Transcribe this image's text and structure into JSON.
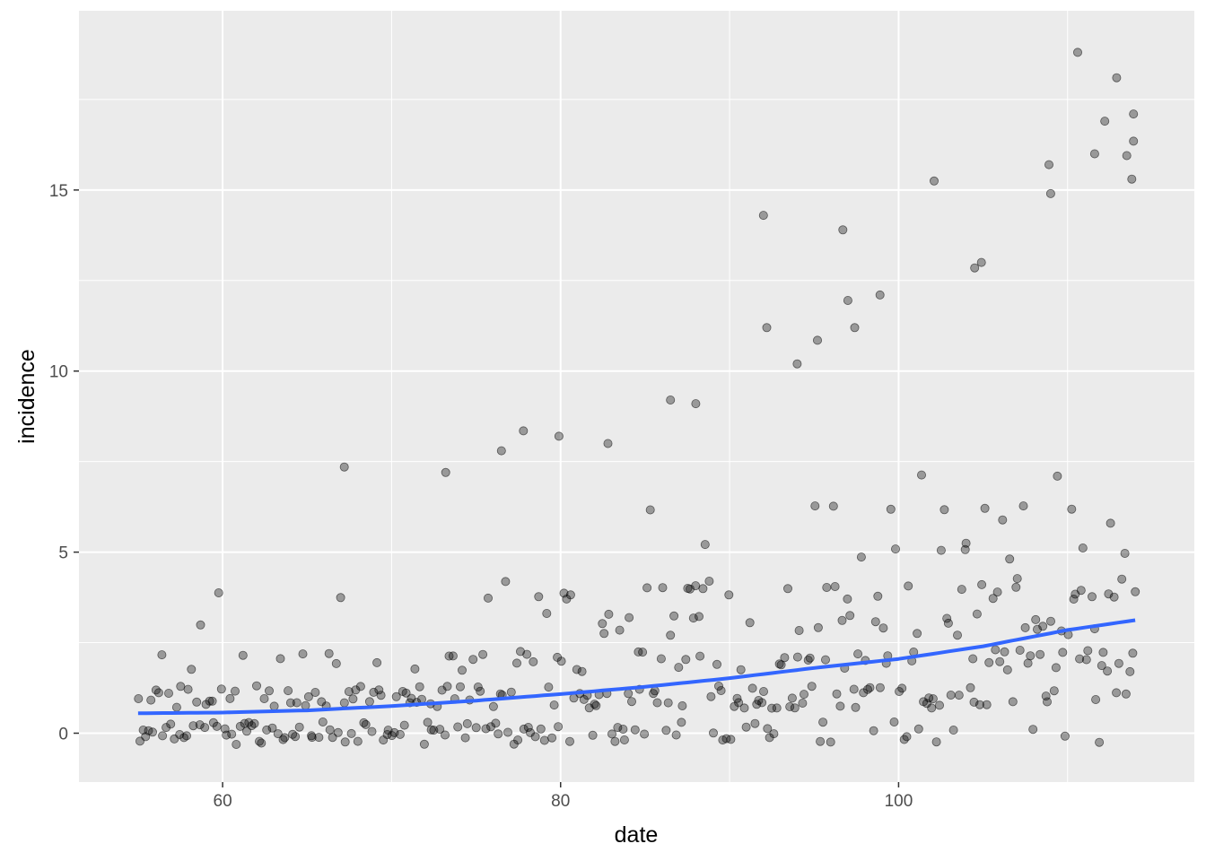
{
  "chart_data": {
    "type": "scatter",
    "xlabel": "date",
    "ylabel": "incidence",
    "xlim": [
      51.5,
      117.5
    ],
    "ylim": [
      -1.35,
      19.95
    ],
    "x_ticks": [
      60,
      80,
      100
    ],
    "x_minor_ticks": [
      70,
      90,
      110
    ],
    "y_ticks": [
      0,
      5,
      10,
      15
    ],
    "y_minor_ticks": [
      2.5,
      7.5,
      12.5,
      17.5
    ],
    "grid": true,
    "legend": "none",
    "point_alpha": 0.35,
    "x_range_of_points": [
      55,
      114
    ],
    "distribution": "integer incidence counts per date, jittered vertically about each integer; counts grow with date (about 0.55 per day near date 55, about 3.1 near date 114) with right-skewed spread",
    "notable_points": [
      {
        "x": 67.2,
        "y": 7.35
      },
      {
        "x": 73.2,
        "y": 7.2
      },
      {
        "x": 76.5,
        "y": 7.8
      },
      {
        "x": 77.8,
        "y": 8.35
      },
      {
        "x": 79.9,
        "y": 8.2
      },
      {
        "x": 82.8,
        "y": 8.0
      },
      {
        "x": 86.5,
        "y": 9.2
      },
      {
        "x": 88.0,
        "y": 9.1
      },
      {
        "x": 92.0,
        "y": 14.3
      },
      {
        "x": 92.2,
        "y": 11.2
      },
      {
        "x": 94.0,
        "y": 10.2
      },
      {
        "x": 95.2,
        "y": 10.85
      },
      {
        "x": 96.7,
        "y": 13.9
      },
      {
        "x": 97.0,
        "y": 11.95
      },
      {
        "x": 97.4,
        "y": 11.2
      },
      {
        "x": 98.9,
        "y": 12.1
      },
      {
        "x": 102.1,
        "y": 15.25
      },
      {
        "x": 104.5,
        "y": 12.85
      },
      {
        "x": 104.9,
        "y": 13.0
      },
      {
        "x": 108.9,
        "y": 15.7
      },
      {
        "x": 109.0,
        "y": 14.9
      },
      {
        "x": 110.6,
        "y": 18.8
      },
      {
        "x": 111.6,
        "y": 16.0
      },
      {
        "x": 112.2,
        "y": 16.9
      },
      {
        "x": 112.9,
        "y": 18.1
      },
      {
        "x": 113.5,
        "y": 15.95
      },
      {
        "x": 113.9,
        "y": 17.1
      },
      {
        "x": 113.9,
        "y": 16.35
      },
      {
        "x": 113.8,
        "y": 15.3
      }
    ],
    "smooth_line": {
      "color": "#3366ff",
      "x": [
        55,
        60,
        65,
        70,
        75,
        80,
        85,
        90,
        95,
        100,
        105,
        110,
        114
      ],
      "y": [
        0.55,
        0.57,
        0.63,
        0.75,
        0.9,
        1.08,
        1.28,
        1.52,
        1.8,
        2.05,
        2.4,
        2.85,
        3.12
      ]
    },
    "colors": {
      "panel": "#ebebeb",
      "grid": "#ffffff",
      "points": "#000000",
      "ticks": "#333333"
    }
  }
}
